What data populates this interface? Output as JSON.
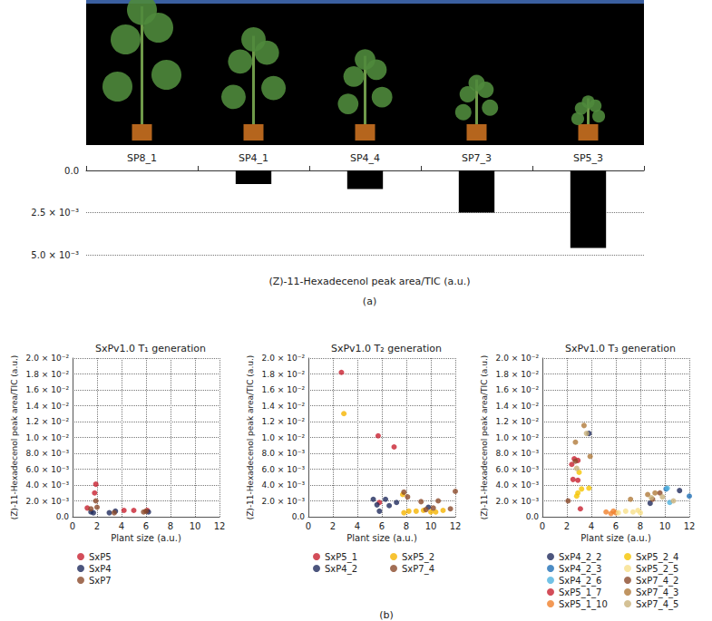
{
  "chart_data": [
    {
      "type": "bar",
      "categories": [
        "SP8_1",
        "SP4_1",
        "SP4_4",
        "SP7_3",
        "SP5_3"
      ],
      "values": [
        0,
        0.0008,
        0.0011,
        0.0025,
        0.0046
      ],
      "color": "#000000",
      "ylabel": "(Z)-11-Hexadecenol peak area/TIC (a.u.)",
      "ylim": [
        0,
        0.005
      ],
      "yticks": [
        {
          "value": 0,
          "label": "0.0"
        },
        {
          "value": 0.0025,
          "label": "2.5 × 10⁻³"
        },
        {
          "value": 0.005,
          "label": "5.0 × 10⁻³"
        }
      ],
      "grid": true,
      "annotations": [
        "(a)"
      ]
    },
    {
      "type": "scatter",
      "title": "SxPv1.0 T₁ generation",
      "xlabel": "Plant size (a.u.)",
      "ylabel": "(Z)-11-Hexadecenol peak area/TIC (a.u.)",
      "xlim": [
        0,
        12
      ],
      "xticks": [
        0,
        2,
        4,
        6,
        8,
        10,
        12
      ],
      "ylim": [
        0,
        0.02
      ],
      "yticks": [
        {
          "value": 0,
          "label": "0.0"
        },
        {
          "value": 0.002,
          "label": "2.0 × 10⁻³"
        },
        {
          "value": 0.004,
          "label": "4.0 × 10⁻³"
        },
        {
          "value": 0.006,
          "label": "6.0 × 10⁻³"
        },
        {
          "value": 0.008,
          "label": "8.0 × 10⁻³"
        },
        {
          "value": 0.01,
          "label": "1.0 × 10⁻²"
        },
        {
          "value": 0.012,
          "label": "1.2 × 10⁻²"
        },
        {
          "value": 0.014,
          "label": "1.4 × 10⁻²"
        },
        {
          "value": 0.016,
          "label": "1.6 × 10⁻²"
        },
        {
          "value": 0.018,
          "label": "1.8 × 10⁻²"
        },
        {
          "value": 0.02,
          "label": "2.0 × 10⁻²"
        }
      ],
      "grid": true,
      "series": [
        {
          "name": "SxP5",
          "color": "#c8202f",
          "x": [
            1.9,
            1.2,
            1.8,
            4.2,
            5.0,
            6.1
          ],
          "values": [
            0.0041,
            0.0011,
            0.003,
            0.0008,
            0.0008,
            0.0008
          ]
        },
        {
          "name": "SxP4",
          "color": "#1f2a5c",
          "x": [
            1.5,
            1.7,
            3.0,
            3.5,
            6.2
          ],
          "values": [
            0.0006,
            0.0005,
            0.0005,
            0.0007,
            0.0006
          ]
        },
        {
          "name": "SxP7",
          "color": "#8b4a2b",
          "x": [
            1.9,
            2.0,
            1.5,
            3.4,
            5.8,
            6.0
          ],
          "values": [
            0.002,
            0.0012,
            0.001,
            0.0005,
            0.0006,
            0.0007
          ]
        }
      ]
    },
    {
      "type": "scatter",
      "title": "SxPv1.0 T₂ generation",
      "xlabel": "Plant size (a.u.)",
      "ylabel": "(Z)-11-Hexadecenol peak area/TIC (a.u.)",
      "xlim": [
        0,
        12
      ],
      "xticks": [
        0,
        2,
        4,
        6,
        8,
        10,
        12
      ],
      "ylim": [
        0,
        0.02
      ],
      "yticks": [
        {
          "value": 0,
          "label": "0.0"
        },
        {
          "value": 0.002,
          "label": "2.0 × 10⁻³"
        },
        {
          "value": 0.004,
          "label": "4.0 × 10⁻³"
        },
        {
          "value": 0.006,
          "label": "6.0 × 10⁻³"
        },
        {
          "value": 0.008,
          "label": "8.0 × 10⁻³"
        },
        {
          "value": 0.01,
          "label": "1.0 × 10⁻²"
        },
        {
          "value": 0.012,
          "label": "1.2 × 10⁻²"
        },
        {
          "value": 0.014,
          "label": "1.4 × 10⁻²"
        },
        {
          "value": 0.016,
          "label": "1.6 × 10⁻²"
        },
        {
          "value": 0.018,
          "label": "1.8 × 10⁻²"
        },
        {
          "value": 0.02,
          "label": "2.0 × 10⁻²"
        }
      ],
      "grid": true,
      "annotations": [
        "(b)"
      ],
      "series": [
        {
          "name": "SxP5_1",
          "color": "#c8202f",
          "x": [
            2.7,
            5.7,
            7.0,
            5.8
          ],
          "values": [
            0.0182,
            0.0102,
            0.0088,
            0.0018
          ]
        },
        {
          "name": "SxP4_2",
          "color": "#1f2a5c",
          "x": [
            5.3,
            5.6,
            5.8,
            6.3,
            6.6,
            7.2,
            9.8
          ],
          "values": [
            0.0022,
            0.0015,
            0.0007,
            0.0022,
            0.0014,
            0.0018,
            0.0012
          ]
        },
        {
          "name": "SxP5_2",
          "color": "#f5b400",
          "x": [
            2.9,
            7.8,
            8.2,
            8.8,
            9.4,
            10.0,
            10.4,
            11.0,
            7.7
          ],
          "values": [
            0.013,
            0.0005,
            0.0007,
            0.0007,
            0.0008,
            0.0006,
            0.0006,
            0.0008,
            0.0028
          ]
        },
        {
          "name": "SxP7_4",
          "color": "#8b4a2b",
          "x": [
            7.8,
            8.1,
            9.2,
            10.2,
            10.6,
            11.6,
            12.0,
            9.6
          ],
          "values": [
            0.0031,
            0.0025,
            0.0019,
            0.0011,
            0.002,
            0.001,
            0.0032,
            0.0009
          ]
        }
      ]
    },
    {
      "type": "scatter",
      "title": "SxPv1.0 T₃ generation",
      "xlabel": "Plant size (a.u.)",
      "ylabel": "(Z)-11-Hexadecenol peak area/TIC (a.u.)",
      "xlim": [
        0,
        12
      ],
      "xticks": [
        0,
        2,
        4,
        6,
        8,
        10,
        12
      ],
      "ylim": [
        0,
        0.02
      ],
      "yticks": [
        {
          "value": 0,
          "label": "0.0"
        },
        {
          "value": 0.002,
          "label": "2.0 × 10⁻³"
        },
        {
          "value": 0.004,
          "label": "4.0 × 10⁻³"
        },
        {
          "value": 0.006,
          "label": "6.0 × 10⁻³"
        },
        {
          "value": 0.008,
          "label": "8.0 × 10⁻³"
        },
        {
          "value": 0.01,
          "label": "1.0 × 10⁻²"
        },
        {
          "value": 0.012,
          "label": "1.2 × 10⁻²"
        },
        {
          "value": 0.014,
          "label": "1.4 × 10⁻²"
        },
        {
          "value": 0.016,
          "label": "1.6 × 10⁻²"
        },
        {
          "value": 0.018,
          "label": "1.8 × 10⁻²"
        },
        {
          "value": 0.02,
          "label": "2.0 × 10⁻²"
        }
      ],
      "grid": true,
      "series": [
        {
          "name": "SxP4_2_2",
          "color": "#1f2a5c",
          "x": [
            3.8,
            11.2,
            8.8
          ],
          "values": [
            0.0105,
            0.0033,
            0.0017
          ]
        },
        {
          "name": "SxP4_2_3",
          "color": "#1f6fb5",
          "x": [
            12.0,
            10.1
          ],
          "values": [
            0.0026,
            0.0035
          ]
        },
        {
          "name": "SxP4_2_6",
          "color": "#4fb3e0",
          "x": [
            10.2,
            10.4
          ],
          "values": [
            0.0036,
            0.0018
          ]
        },
        {
          "name": "SxP5_1_7",
          "color": "#c8202f",
          "x": [
            2.6,
            2.9,
            2.5,
            2.9,
            3.1,
            2.4
          ],
          "values": [
            0.0073,
            0.0071,
            0.0047,
            0.0046,
            0.001,
            0.0066
          ]
        },
        {
          "name": "SxP5_1_10",
          "color": "#f07f2a",
          "x": [
            5.2,
            5.6,
            6.0,
            5.8
          ],
          "values": [
            0.0006,
            0.0004,
            0.0005,
            0.0007
          ]
        },
        {
          "name": "SxP5_2_4",
          "color": "#f5c400",
          "x": [
            2.9,
            3.2,
            3.8,
            3.0,
            2.8
          ],
          "values": [
            0.003,
            0.0035,
            0.0036,
            0.0056,
            0.0026
          ]
        },
        {
          "name": "SxP5_2_5",
          "color": "#f8e08a",
          "x": [
            6.2,
            6.8,
            7.4,
            7.8,
            8.0
          ],
          "values": [
            0.0005,
            0.0007,
            0.0006,
            0.0008,
            0.0005
          ]
        },
        {
          "name": "SxP7_4_2",
          "color": "#8b4a2b",
          "x": [
            2.1,
            2.7,
            9.6,
            9.0
          ],
          "values": [
            0.002,
            0.007,
            0.003,
            0.0022
          ]
        },
        {
          "name": "SxP7_4_3",
          "color": "#b07a3b",
          "x": [
            2.7,
            3.4,
            3.9,
            7.2,
            8.6,
            9.2
          ],
          "values": [
            0.0094,
            0.0115,
            0.0076,
            0.0022,
            0.0028,
            0.003
          ]
        },
        {
          "name": "SxP7_4_5",
          "color": "#c9b27a",
          "x": [
            2.8,
            3.6,
            9.8,
            10.7,
            8.9
          ],
          "values": [
            0.0061,
            0.0105,
            0.0025,
            0.002,
            0.0024
          ]
        }
      ]
    }
  ]
}
